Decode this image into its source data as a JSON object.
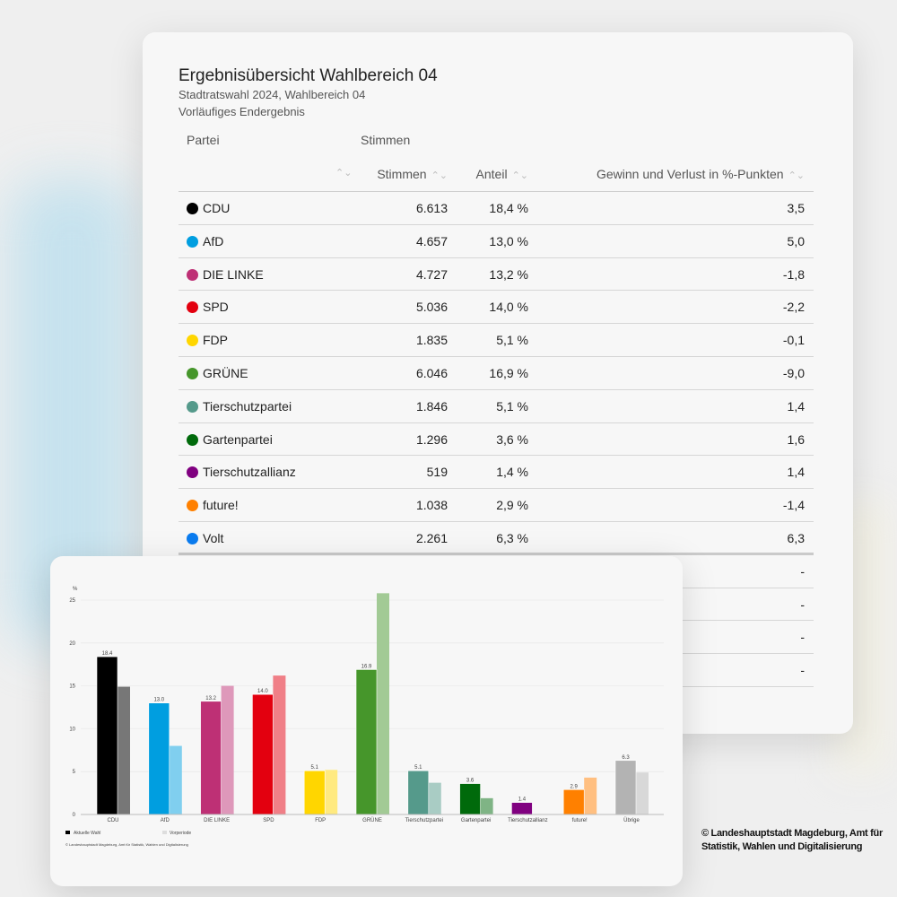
{
  "header": {
    "title": "Ergebnisübersicht Wahlbereich 04",
    "subtitle": "Stadtratswahl 2024, Wahlbereich 04",
    "status": "Vorläufiges Endergebnis"
  },
  "table": {
    "group_headers": {
      "partei": "Partei",
      "stimmen": "Stimmen"
    },
    "columns": {
      "stimmen": "Stimmen",
      "anteil": "Anteil",
      "gewinn": "Gewinn und Verlust in %-Punkten",
      "sort_icon": "⌃⌄"
    },
    "rows": [
      {
        "party": "CDU",
        "color": "#000000",
        "votes": "6.613",
        "share": "18,4 %",
        "change": "3,5"
      },
      {
        "party": "AfD",
        "color": "#009ee0",
        "votes": "4.657",
        "share": "13,0 %",
        "change": "5,0"
      },
      {
        "party": "DIE LINKE",
        "color": "#be3075",
        "votes": "4.727",
        "share": "13,2 %",
        "change": "-1,8"
      },
      {
        "party": "SPD",
        "color": "#e3000f",
        "votes": "5.036",
        "share": "14,0 %",
        "change": "-2,2"
      },
      {
        "party": "FDP",
        "color": "#ffd600",
        "votes": "1.835",
        "share": "5,1 %",
        "change": "-0,1"
      },
      {
        "party": "GRÜNE",
        "color": "#46962b",
        "votes": "6.046",
        "share": "16,9 %",
        "change": "-9,0"
      },
      {
        "party": "Tierschutzpartei",
        "color": "#559a8b",
        "votes": "1.846",
        "share": "5,1 %",
        "change": "1,4"
      },
      {
        "party": "Gartenpartei",
        "color": "#006a0b",
        "votes": "1.296",
        "share": "3,6 %",
        "change": "1,6"
      },
      {
        "party": "Tierschutzallianz",
        "color": "#800080",
        "votes": "519",
        "share": "1,4 %",
        "change": "1,4"
      },
      {
        "party": "future!",
        "color": "#ff8000",
        "votes": "1.038",
        "share": "2,9 %",
        "change": "-1,4"
      },
      {
        "party": "Volt",
        "color": "#0a7cf0",
        "votes": "2.261",
        "share": "6,3 %",
        "change": "6,3"
      }
    ],
    "extra_rows": [
      {
        "change": "-"
      },
      {
        "change": "-"
      },
      {
        "change": "-"
      },
      {
        "change": "-"
      }
    ]
  },
  "chart_data": {
    "type": "bar",
    "ylabel": "%",
    "ylim": [
      0,
      25
    ],
    "yticks": [
      "0",
      "5",
      "10",
      "15",
      "20",
      "25"
    ],
    "categories": [
      "CDU",
      "AfD",
      "DIE LINKE",
      "SPD",
      "FDP",
      "GRÜNE",
      "Tierschutzpartei",
      "Gartenpartei",
      "Tierschutzallianz",
      "future!",
      "Übrige"
    ],
    "series": [
      {
        "name": "Aktuelle Wahl",
        "values": [
          18.4,
          13.0,
          13.2,
          14.0,
          5.1,
          16.9,
          5.1,
          3.6,
          1.4,
          2.9,
          6.3
        ],
        "labels": [
          "18.4",
          "13.0",
          "13.2",
          "14.0",
          "5.1",
          "16.9",
          "5.1",
          "3.6",
          "1.4",
          "2.9",
          "6.3"
        ],
        "colors": [
          "#000000",
          "#009ee0",
          "#be3075",
          "#e3000f",
          "#ffd600",
          "#46962b",
          "#559a8b",
          "#006a0b",
          "#800080",
          "#ff8000",
          "#b3b3b3"
        ]
      },
      {
        "name": "Vorperiode",
        "values": [
          14.9,
          8.0,
          15.0,
          16.2,
          5.2,
          25.8,
          3.7,
          1.9,
          null,
          4.3,
          4.9
        ],
        "colors": [
          "#777777",
          "#80cfef",
          "#de98ba",
          "#f07f87",
          "#ffea80",
          "#a2ca95",
          "#a9ccc4",
          "#7fb485",
          "#c080c0",
          "#ffbf80",
          "#d8d8d8"
        ]
      }
    ],
    "legend_position": "bottom-left",
    "source": "© Landeshauptstadt Magdeburg, Amt für Statistik, Wahlen und Digitalisierung"
  },
  "copyright": {
    "line1": "© Landeshauptstadt Magdeburg, Amt für",
    "line2": "Statistik, Wahlen und Digitalisierung"
  }
}
